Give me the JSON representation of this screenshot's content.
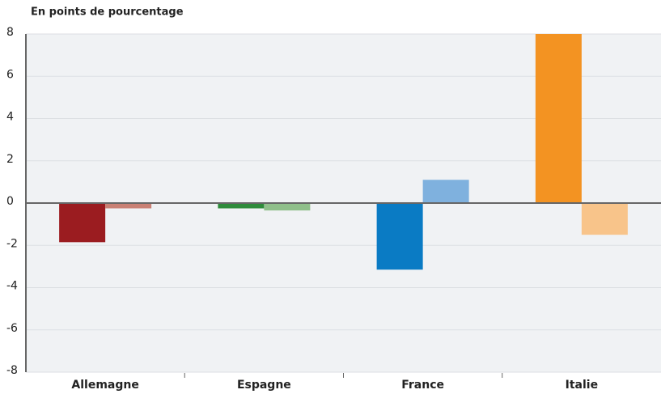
{
  "chart_data": {
    "type": "bar",
    "title": "En points de pourcentage",
    "categories": [
      "Allemagne",
      "Espagne",
      "France",
      "Italie"
    ],
    "series": [
      {
        "colors": [
          "#9b1c20",
          "#2e8b3a",
          "#0a7bc4",
          "#f39322"
        ],
        "values": [
          -1.85,
          -0.25,
          -3.15,
          8.0
        ]
      },
      {
        "colors": [
          "#c98074",
          "#8fbf8a",
          "#7fb1de",
          "#f8c48a"
        ],
        "values": [
          -0.25,
          -0.35,
          1.1,
          -1.5
        ]
      }
    ],
    "ylim": [
      -8,
      8
    ],
    "yticks": [
      -8,
      -6,
      -4,
      -2,
      0,
      2,
      4,
      6,
      8
    ],
    "grid": true
  }
}
